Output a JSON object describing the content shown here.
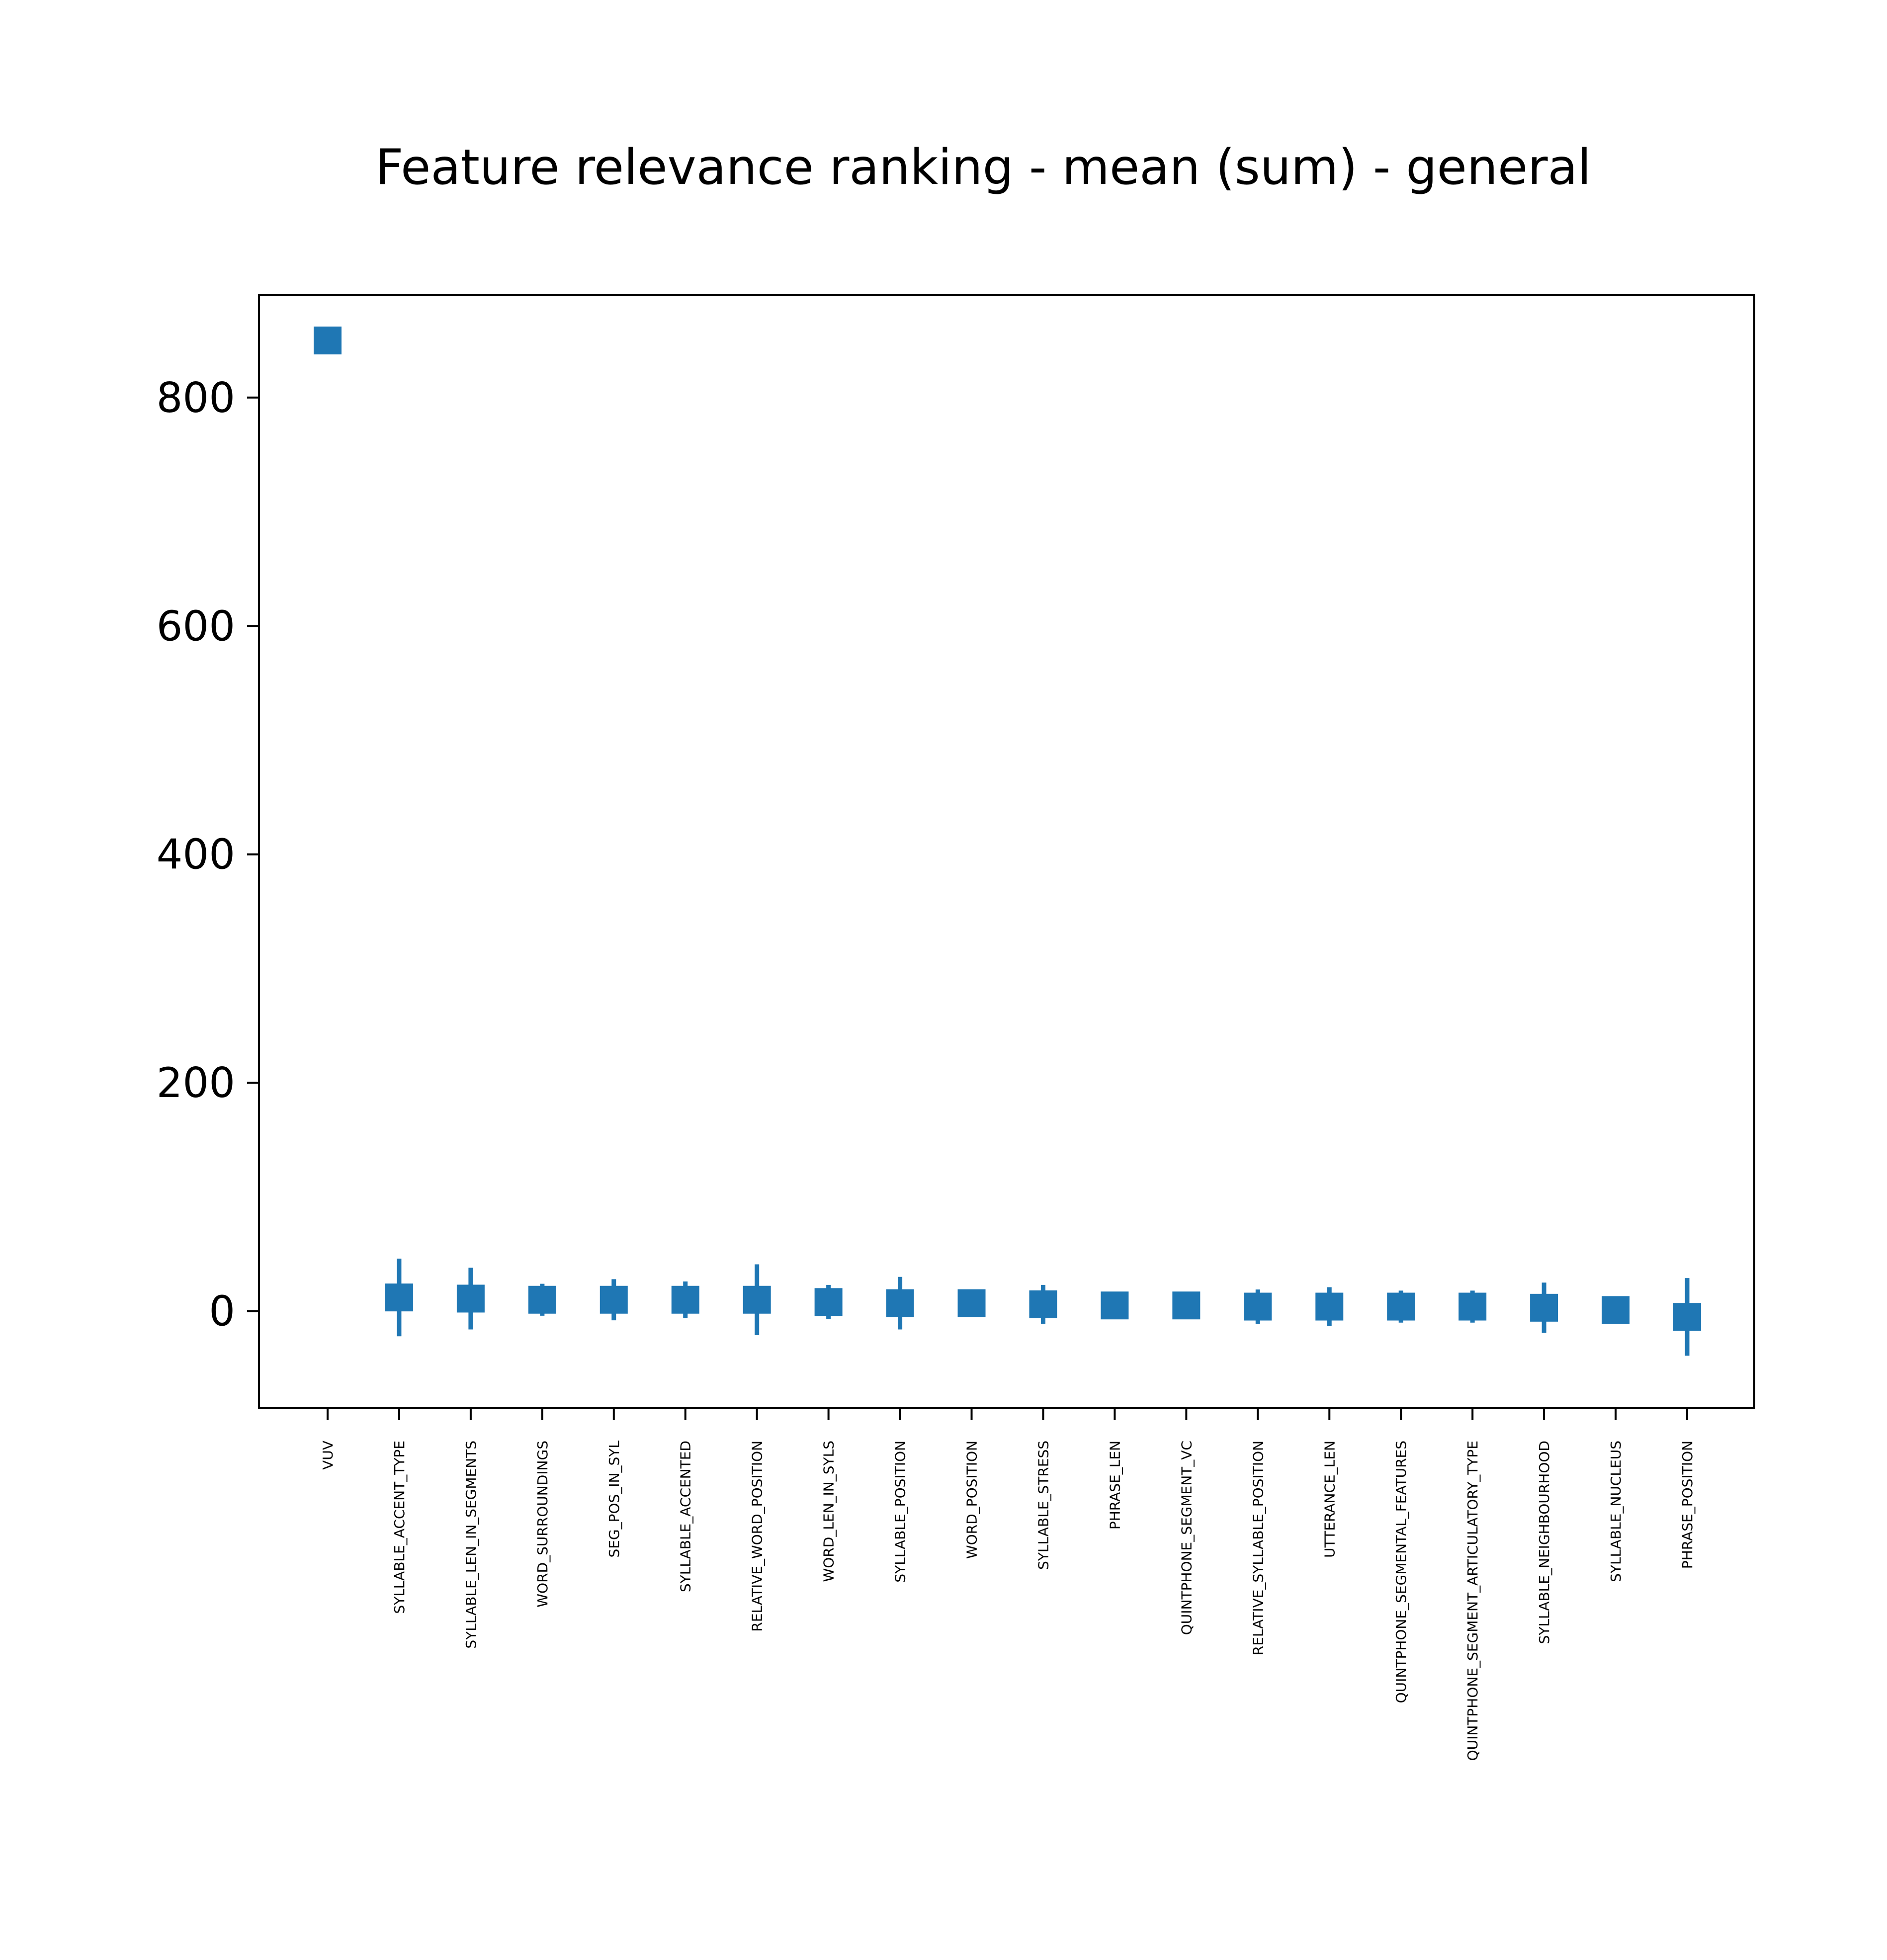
{
  "chart_data": {
    "type": "scatter",
    "title": "Feature relevance ranking - mean (sum) - general",
    "xlabel": "",
    "ylabel": "",
    "ylim": [
      -85,
      890
    ],
    "yticks": [
      0,
      200,
      400,
      600,
      800
    ],
    "ytick_labels": [
      "0",
      "200",
      "400",
      "600",
      "800"
    ],
    "grid": false,
    "legend": "none",
    "colors": {
      "marker": "#1f77b4",
      "axes": "#000000",
      "background": "#ffffff"
    },
    "marker": "square",
    "categories": [
      "VUV",
      "SYLLABLE_ACCENT_TYPE",
      "SYLLABLE_LEN_IN_SEGMENTS",
      "WORD_SURROUNDINGS",
      "SEG_POS_IN_SYL",
      "SYLLABLE_ACCENTED",
      "RELATIVE_WORD_POSITION",
      "WORD_LEN_IN_SYLS",
      "SYLLABLE_POSITION",
      "WORD_POSITION",
      "SYLLABLE_STRESS",
      "PHRASE_LEN",
      "QUINTPHONE_SEGMENT_VC",
      "RELATIVE_SYLLABLE_POSITION",
      "UTTERANCE_LEN",
      "QUINTPHONE_SEGMENTAL_FEATURES",
      "QUINTPHONE_SEGMENT_ARTICULATORY_TYPE",
      "SYLLABLE_NEIGHBOURHOOD",
      "SYLLABLE_NUCLEUS",
      "PHRASE_POSITION"
    ],
    "values": [
      850,
      12,
      11,
      10,
      10,
      10,
      10,
      8,
      7,
      7,
      6,
      5,
      5,
      4,
      4,
      4,
      4,
      3,
      1,
      -5
    ],
    "errors": [
      0,
      34,
      27,
      14,
      18,
      16,
      31,
      15,
      23,
      0,
      17,
      12,
      0,
      15,
      17,
      14,
      14,
      22,
      0,
      34
    ]
  }
}
